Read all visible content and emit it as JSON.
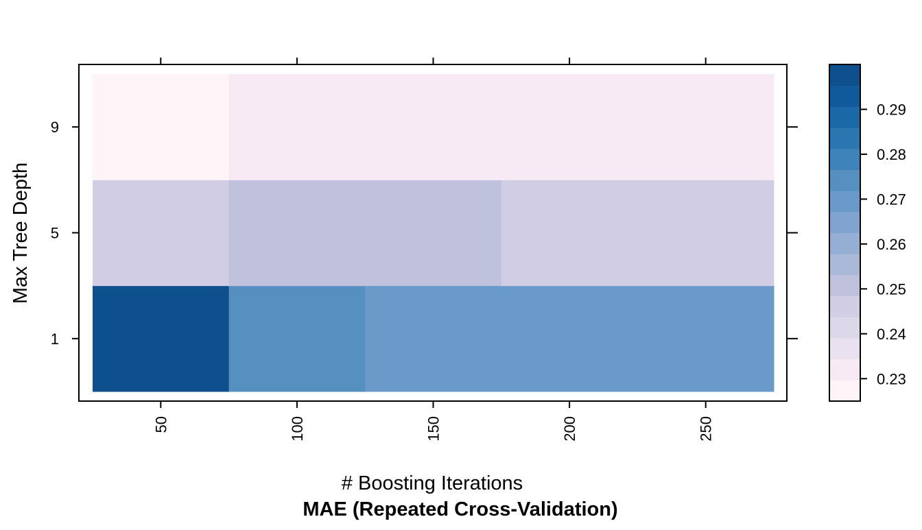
{
  "chart_data": {
    "type": "heatmap",
    "title": "MAE (Repeated Cross-Validation)",
    "xlabel": "# Boosting Iterations",
    "ylabel": "Max Tree Depth",
    "x": [
      50,
      100,
      150,
      200,
      250
    ],
    "x_tick_labels": [
      "50",
      "100",
      "150",
      "200",
      "250"
    ],
    "y": [
      1,
      5,
      9
    ],
    "y_tick_labels": [
      "1",
      "5",
      "9"
    ],
    "values": [
      [
        0.2985,
        0.2722,
        0.268,
        0.268,
        0.268
      ],
      [
        0.2465,
        0.2505,
        0.2505,
        0.2465,
        0.2465
      ],
      [
        0.2265,
        0.2325,
        0.2325,
        0.2325,
        0.2325
      ]
    ],
    "colorbar": {
      "range": [
        0.225,
        0.3
      ],
      "ticks": [
        0.23,
        0.24,
        0.25,
        0.26,
        0.27,
        0.28,
        0.29
      ],
      "tick_labels": [
        "0.23",
        "0.24",
        "0.25",
        "0.26",
        "0.27",
        "0.28",
        "0.29"
      ],
      "colors": [
        "#fff4f7",
        "#f7eaf4",
        "#e9e1ef",
        "#dcd8ea",
        "#d0cde4",
        "#c0c2dd",
        "#aab9d8",
        "#94aed4",
        "#80a3cf",
        "#6a9ac9",
        "#5690c1",
        "#3f83bb",
        "#2b76b0",
        "#1a68a6",
        "#105a9c",
        "#0e4f8e"
      ]
    },
    "grid": false,
    "legend": "colorbar-right"
  }
}
